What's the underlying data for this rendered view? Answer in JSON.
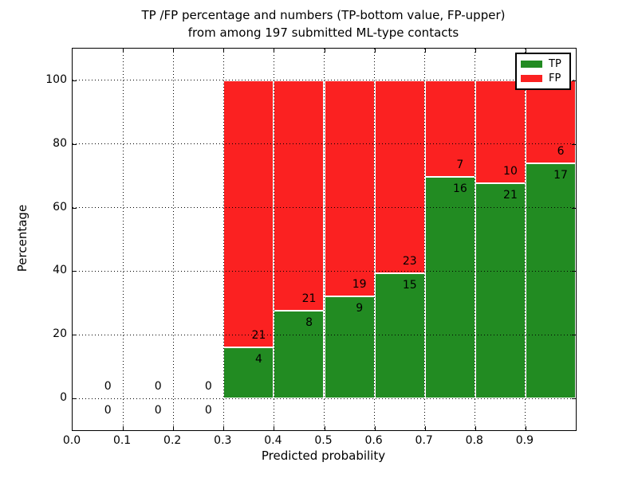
{
  "chart_data": {
    "type": "bar",
    "stacked": true,
    "title_lines": [
      "TP /FP percentage and numbers (TP-bottom value, FP-upper)",
      "from among 197 submitted ML-type contacts"
    ],
    "title": "TP /FP percentage and numbers (TP-bottom value, FP-upper) from among 197 submitted ML-type contacts",
    "xlabel": "Predicted probability",
    "ylabel": "Percentage",
    "xlim": [
      0,
      1
    ],
    "ylim": [
      -10,
      110
    ],
    "xticks": [
      "0.0",
      "0.1",
      "0.2",
      "0.3",
      "0.4",
      "0.5",
      "0.6",
      "0.7",
      "0.8",
      "0.9"
    ],
    "yticks": [
      "0",
      "20",
      "40",
      "60",
      "80",
      "100"
    ],
    "grid": "dotted",
    "legend_position": "upper right",
    "bin_width": 0.1,
    "bin_starts": [
      0,
      0.1,
      0.2,
      0.3,
      0.4,
      0.5,
      0.6,
      0.7,
      0.8,
      0.9
    ],
    "series": [
      {
        "name": "TP",
        "color": "#228b22",
        "values": [
          0,
          0,
          0,
          4,
          8,
          9,
          15,
          16,
          21,
          17
        ]
      },
      {
        "name": "FP",
        "color": "#fb2121",
        "values": [
          0,
          0,
          0,
          21,
          21,
          19,
          23,
          7,
          10,
          6
        ]
      }
    ],
    "bar_edge_color": "#ffffff",
    "total_contacts": 197
  }
}
